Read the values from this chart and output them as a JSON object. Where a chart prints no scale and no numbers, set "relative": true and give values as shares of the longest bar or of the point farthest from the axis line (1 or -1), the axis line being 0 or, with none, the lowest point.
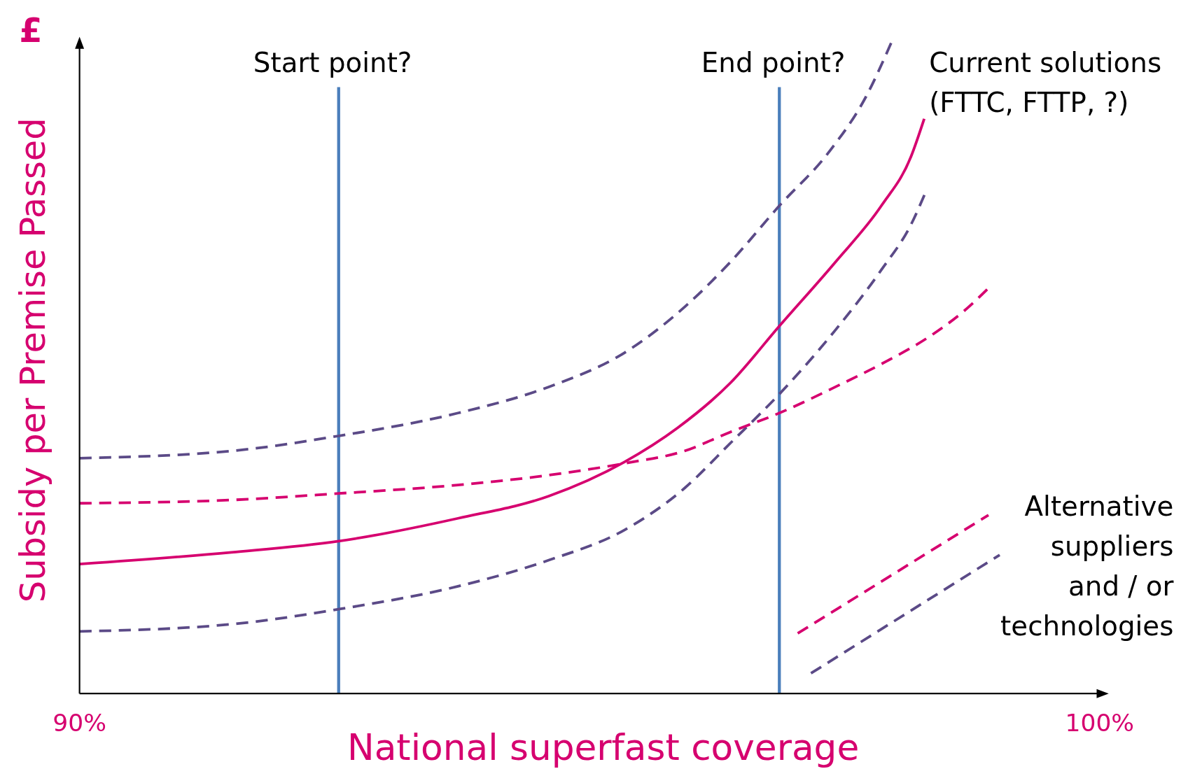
{
  "chart_data": {
    "type": "line",
    "relative": true,
    "xlabel": "National superfast coverage",
    "ylabel": "Subsidy per Premise Passed",
    "xlim": [
      90,
      100
    ],
    "xticks": [
      {
        "value": 90,
        "label": "90%"
      },
      {
        "value": 100,
        "label": "100%"
      }
    ],
    "grid": false,
    "marker": "none",
    "ref_lines": [
      {
        "axis": "x",
        "value": 92.54,
        "label": "Start point?",
        "color": "#4a7ebb"
      },
      {
        "axis": "x",
        "value": 96.86,
        "label": "End point?",
        "color": "#4a7ebb"
      }
    ],
    "annotations": [
      "£",
      "Current solutions\n(FTTC, FTTP, ?)",
      "Alternative\nsuppliers\nand / or\ntechnologies"
    ],
    "series": [
      {
        "color": "#d6006f",
        "line_style": "solid",
        "x": [
          90,
          91.49,
          92.54,
          93.71,
          94.6,
          95.34,
          95.86,
          96.38,
          96.86,
          97.41,
          97.86,
          98.15,
          98.28
        ],
        "values": [
          0.198,
          0.216,
          0.233,
          0.268,
          0.302,
          0.354,
          0.406,
          0.475,
          0.562,
          0.66,
          0.746,
          0.821,
          0.879
        ]
      },
      {
        "color": "#5b4a87",
        "line_style": "dashed",
        "x": [
          90,
          91.49,
          92.54,
          93.71,
          94.6,
          95.34,
          95.93,
          96.38,
          96.86,
          97.34,
          97.71,
          97.97
        ],
        "values": [
          0.36,
          0.371,
          0.394,
          0.429,
          0.469,
          0.521,
          0.591,
          0.66,
          0.746,
          0.827,
          0.913,
          1
        ]
      },
      {
        "color": "#5b4a87",
        "line_style": "dashed",
        "x": [
          90,
          91.49,
          92.54,
          93.71,
          94.6,
          95.34,
          95.93,
          96.38,
          96.86,
          97.41,
          97.86,
          98.15,
          98.3
        ],
        "values": [
          0.095,
          0.106,
          0.129,
          0.164,
          0.204,
          0.25,
          0.314,
          0.383,
          0.458,
          0.556,
          0.648,
          0.717,
          0.769
        ]
      },
      {
        "color": "#d6006f",
        "line_style": "dashed",
        "x": [
          90,
          91.49,
          92.54,
          93.71,
          94.6,
          95.34,
          95.93,
          96.38,
          96.86,
          97.41,
          97.86,
          98.37,
          98.67,
          98.93
        ],
        "values": [
          0.291,
          0.296,
          0.306,
          0.319,
          0.334,
          0.352,
          0.371,
          0.4,
          0.429,
          0.469,
          0.504,
          0.55,
          0.585,
          0.623
        ]
      },
      {
        "color": "#d6006f",
        "line_style": "dashed",
        "x": [
          97.04,
          98.91
        ],
        "values": [
          0.092,
          0.273
        ]
      },
      {
        "color": "#5b4a87",
        "line_style": "dashed",
        "x": [
          97.17,
          99.02
        ],
        "values": [
          0.031,
          0.212
        ]
      }
    ]
  }
}
